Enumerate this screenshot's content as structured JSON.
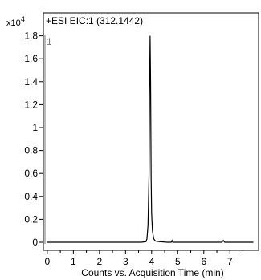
{
  "chart_data": {
    "type": "line",
    "title": "+ESI EIC:1 (312.1442)",
    "trace_label": "1",
    "y_multiplier": "x10",
    "y_multiplier_exponent": "4",
    "xlabel": "Counts vs. Acquisition Time (min)",
    "ylabel": "",
    "xlim": [
      -0.15,
      8.1
    ],
    "ylim": [
      -0.07,
      2.0
    ],
    "x_ticks": [
      0,
      1,
      2,
      3,
      4,
      5,
      6,
      7
    ],
    "y_ticks": [
      0,
      0.2,
      0.4,
      0.6,
      0.8,
      1,
      1.2,
      1.4,
      1.6,
      1.8
    ],
    "y_tick_labels": [
      "0",
      "0.2",
      "0.4",
      "0.6",
      "0.8",
      "1",
      "1.2",
      "1.4",
      "1.6",
      "1.8"
    ],
    "grid": false,
    "series": [
      {
        "color": "#000000",
        "x": [
          0.0,
          1.0,
          2.0,
          3.0,
          3.6,
          3.78,
          3.82,
          3.86,
          3.9,
          3.92,
          3.94,
          3.96,
          3.98,
          4.0,
          4.03,
          4.08,
          4.15,
          4.3,
          4.6,
          4.75,
          4.78,
          4.81,
          5.0,
          5.5,
          6.0,
          6.7,
          6.75,
          6.8,
          7.0,
          7.5,
          7.9
        ],
        "y": [
          0.0,
          0.0,
          0.0,
          0.0,
          0.0,
          0.005,
          0.03,
          0.15,
          0.6,
          1.3,
          1.8,
          1.4,
          0.55,
          0.25,
          0.1,
          0.03,
          0.01,
          0.005,
          0.0,
          0.0,
          0.015,
          0.0,
          0.0,
          0.0,
          0.0,
          0.0,
          0.015,
          0.0,
          0.0,
          0.0,
          0.0
        ]
      }
    ]
  }
}
